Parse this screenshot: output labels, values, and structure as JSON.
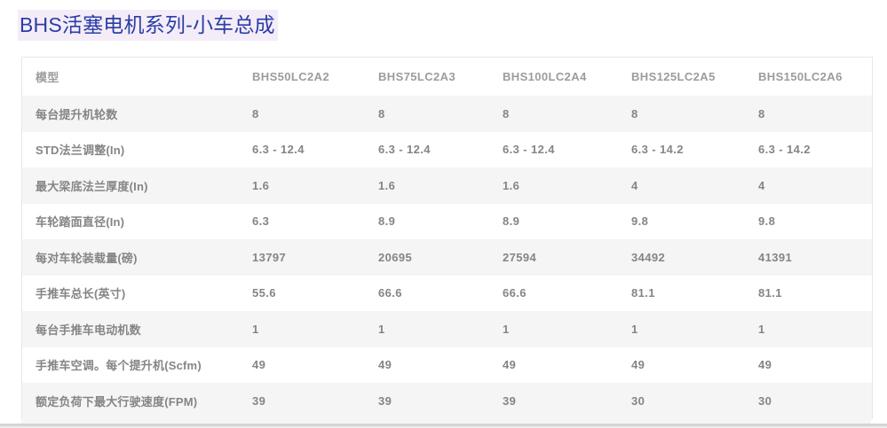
{
  "page": {
    "title": "BHS活塞电机系列-小车总成"
  },
  "colors": {
    "title_color": "#2b3da6",
    "title_highlight": "#f4edf8",
    "row_alt_bg": "#f5f5f5",
    "table_border": "#e7e7e7",
    "header_text": "#9c9c9c",
    "cell_text": "#858585",
    "divider_dark": "#d4d4d4",
    "divider_light": "#ececec"
  },
  "table": {
    "columns": [
      "模型",
      "BHS50LC2A2",
      "BHS75LC2A3",
      "BHS100LC2A4",
      "BHS125LC2A5",
      "BHS150LC2A6"
    ],
    "rows": [
      {
        "label": "每台提升机轮数",
        "values": [
          "8",
          "8",
          "8",
          "8",
          "8"
        ]
      },
      {
        "label": "STD法兰调整(In)",
        "values": [
          "6.3 - 12.4",
          "6.3 - 12.4",
          "6.3 - 12.4",
          "6.3 - 14.2",
          "6.3 - 14.2"
        ]
      },
      {
        "label": "最大梁底法兰厚度(In)",
        "values": [
          "1.6",
          "1.6",
          "1.6",
          "4",
          "4"
        ]
      },
      {
        "label": "车轮踏面直径(In)",
        "values": [
          "6.3",
          "8.9",
          "8.9",
          "9.8",
          "9.8"
        ]
      },
      {
        "label": "每对车轮装载量(磅)",
        "values": [
          "13797",
          "20695",
          "27594",
          "34492",
          "41391"
        ]
      },
      {
        "label": "手推车总长(英寸)",
        "values": [
          "55.6",
          "66.6",
          "66.6",
          "81.1",
          "81.1"
        ]
      },
      {
        "label": "每台手推车电动机数",
        "values": [
          "1",
          "1",
          "1",
          "1",
          "1"
        ]
      },
      {
        "label": "手推车空调。每个提升机(Scfm)",
        "values": [
          "49",
          "49",
          "49",
          "49",
          "49"
        ]
      },
      {
        "label": "额定负荷下最大行驶速度(FPM)",
        "values": [
          "39",
          "39",
          "39",
          "30",
          "30"
        ]
      }
    ]
  }
}
